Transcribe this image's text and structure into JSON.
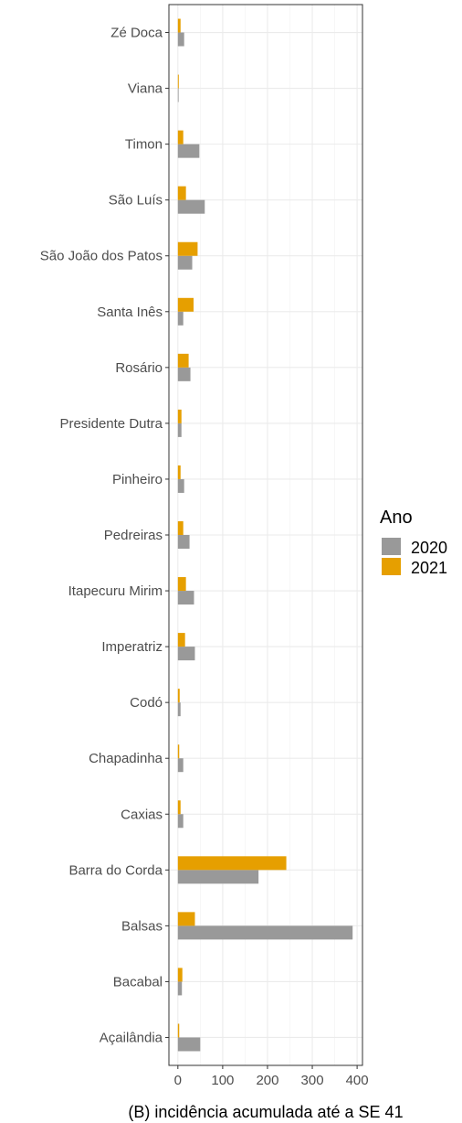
{
  "chart_data": {
    "type": "bar",
    "orientation": "horizontal",
    "title": "",
    "xlabel": "(B) incidência acumulada até a SE 41",
    "ylabel": "",
    "categories": [
      "Zé Doca",
      "Viana",
      "Timon",
      "São Luís",
      "São João dos Patos",
      "Santa Inês",
      "Rosário",
      "Presidente Dutra",
      "Pinheiro",
      "Pedreiras",
      "Itapecuru Mirim",
      "Imperatriz",
      "Codó",
      "Chapadinha",
      "Caxias",
      "Barra do Corda",
      "Balsas",
      "Bacabal",
      "Açailândia"
    ],
    "series": [
      {
        "name": "2020",
        "color": "#999999",
        "values": [
          14,
          1,
          48,
          60,
          32,
          12,
          28,
          8,
          14,
          26,
          36,
          38,
          6,
          12,
          12,
          180,
          390,
          9,
          50
        ]
      },
      {
        "name": "2021",
        "color": "#E69F00",
        "values": [
          6,
          2,
          12,
          18,
          44,
          35,
          24,
          8,
          6,
          12,
          18,
          16,
          4,
          3,
          6,
          242,
          38,
          10,
          3
        ]
      }
    ],
    "xlim": [
      -20,
      412
    ],
    "xticks": [
      0,
      100,
      200,
      300,
      400
    ],
    "grid": true,
    "legend": {
      "title": "Ano",
      "position": "right"
    }
  }
}
